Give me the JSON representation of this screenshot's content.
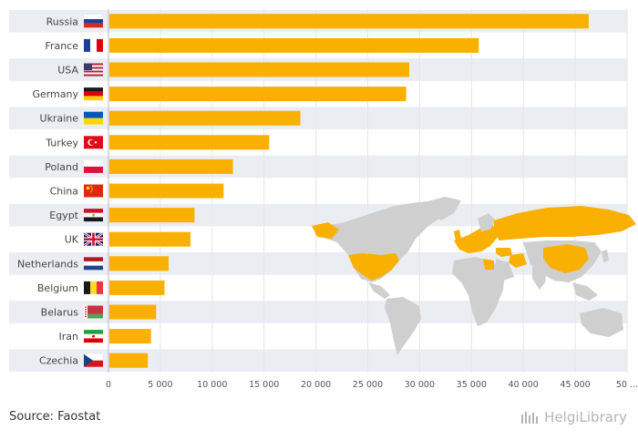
{
  "chart_data": {
    "type": "bar",
    "orientation": "horizontal",
    "categories": [
      "Russia",
      "France",
      "USA",
      "Germany",
      "Ukraine",
      "Turkey",
      "Poland",
      "China",
      "Egypt",
      "UK",
      "Netherlands",
      "Belgium",
      "Belarus",
      "Iran",
      "Czechia"
    ],
    "values": [
      46300,
      35700,
      29000,
      28700,
      18500,
      15500,
      12000,
      11100,
      8300,
      7900,
      5800,
      5400,
      4600,
      4100,
      3800
    ],
    "xlim": [
      0,
      50000
    ],
    "x_ticks": [
      "0",
      "5 000",
      "10 000",
      "15 000",
      "20 000",
      "25 000",
      "30 000",
      "35 000",
      "40 000",
      "45 000",
      "50 ..."
    ],
    "bar_color": "#f9b000",
    "row_band_color": "#eaedf2",
    "grid": true
  },
  "flags": [
    "flag-russia",
    "flag-france",
    "flag-usa",
    "flag-germany",
    "flag-ukraine",
    "flag-turkey",
    "flag-poland",
    "flag-china",
    "flag-egypt",
    "flag-uk",
    "flag-netherlands",
    "flag-belgium",
    "flag-belarus",
    "flag-iran",
    "flag-czechia"
  ],
  "footer": {
    "source": "Source: Faostat",
    "logo": "HelgiLibrary"
  },
  "map": {
    "land_color": "#cfcfcf",
    "highlight_color": "#f9b000",
    "icon": "world-map-icon"
  }
}
